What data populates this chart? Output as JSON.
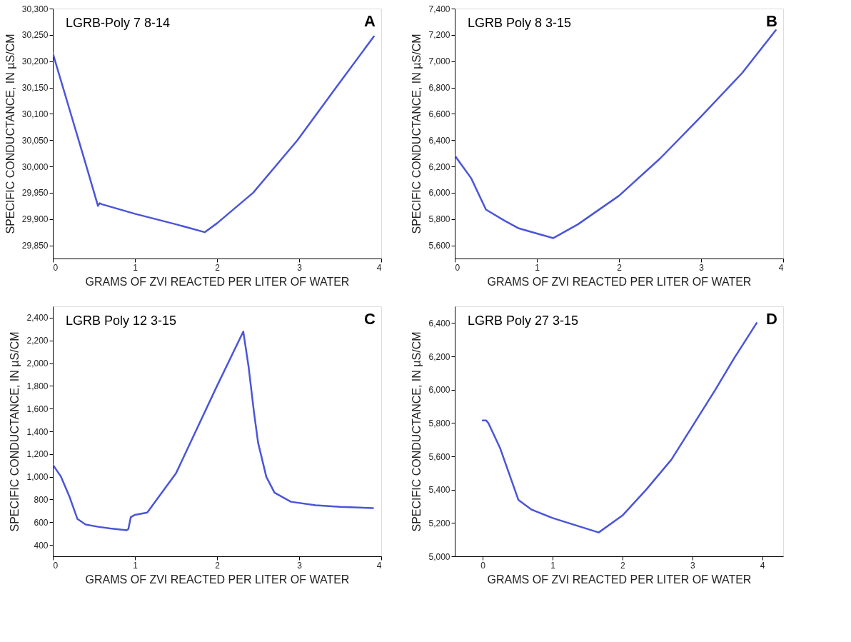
{
  "chart_data": [
    {
      "type": "line",
      "title": "LGRB-Poly 7 8-14",
      "annotations": [
        "A"
      ],
      "xlabel": "GRAMS OF ZVI REACTED PER LITER OF WATER",
      "ylabel": "SPECIFIC CONDUCTANCE, IN µS/CM",
      "xlim": [
        0,
        4
      ],
      "xticks": [
        0,
        1,
        2,
        3,
        4
      ],
      "ylim": [
        29825,
        30300
      ],
      "yticks": [
        {
          "value": 29850,
          "label": "29,850"
        },
        {
          "value": 29900,
          "label": "29,900"
        },
        {
          "value": 29950,
          "label": "29,950"
        },
        {
          "value": 30000,
          "label": "30,000"
        },
        {
          "value": 30050,
          "label": "30,050"
        },
        {
          "value": 30100,
          "label": "30,100"
        },
        {
          "value": 30150,
          "label": "30,150"
        },
        {
          "value": 30200,
          "label": "30,200"
        },
        {
          "value": 30250,
          "label": "30,250"
        },
        {
          "value": 30300,
          "label": "30,300"
        }
      ],
      "grid": false,
      "marker": "none",
      "line_style": "solid",
      "series": [
        {
          "color": "#4a55d8",
          "x": [
            0,
            0.2,
            0.4,
            0.55,
            0.57,
            0.6,
            1.0,
            1.5,
            1.85,
            2.0,
            2.44,
            2.98,
            3.45,
            3.91
          ],
          "values": [
            30215,
            30110,
            30005,
            29925,
            29930,
            29928,
            29910,
            29890,
            29875,
            29892,
            29950,
            30050,
            30150,
            30247
          ]
        }
      ]
    },
    {
      "type": "line",
      "title": "LGRB Poly 8 3-15",
      "annotations": [
        "B"
      ],
      "xlabel": "GRAMS OF ZVI REACTED PER LITER OF WATER",
      "ylabel": "SPECIFIC CONDUCTANCE, IN µS/CM",
      "xlim": [
        0,
        4
      ],
      "xticks": [
        0,
        1,
        2,
        3,
        4
      ],
      "ylim": [
        5500,
        7400
      ],
      "yticks": [
        {
          "value": 5600,
          "label": "5,600"
        },
        {
          "value": 5800,
          "label": "5,800"
        },
        {
          "value": 6000,
          "label": "6,000"
        },
        {
          "value": 6200,
          "label": "6,200"
        },
        {
          "value": 6400,
          "label": "6,400"
        },
        {
          "value": 6600,
          "label": "6,600"
        },
        {
          "value": 6800,
          "label": "6,800"
        },
        {
          "value": 7000,
          "label": "7,000"
        },
        {
          "value": 7200,
          "label": "7,200"
        },
        {
          "value": 7400,
          "label": "7,400"
        }
      ],
      "grid": false,
      "marker": "none",
      "line_style": "solid",
      "series": [
        {
          "color": "#4a55d8",
          "x": [
            0,
            0.2,
            0.38,
            0.6,
            0.78,
            1.0,
            1.2,
            1.5,
            2.0,
            2.5,
            3.0,
            3.5,
            3.91
          ],
          "values": [
            6283,
            6110,
            5872,
            5790,
            5729,
            5690,
            5655,
            5760,
            5977,
            6260,
            6580,
            6910,
            7236
          ]
        }
      ]
    },
    {
      "type": "line",
      "title": "LGRB Poly 12 3-15",
      "annotations": [
        "C"
      ],
      "xlabel": "GRAMS OF ZVI REACTED PER LITER OF WATER",
      "ylabel": "SPECIFIC CONDUCTANCE, IN µS/CM",
      "xlim": [
        0,
        4
      ],
      "xticks": [
        0,
        1,
        2,
        3,
        4
      ],
      "ylim": [
        300,
        2500
      ],
      "yticks": [
        {
          "value": 400,
          "label": "400"
        },
        {
          "value": 600,
          "label": "600"
        },
        {
          "value": 800,
          "label": "800"
        },
        {
          "value": 1000,
          "label": "1,000"
        },
        {
          "value": 1200,
          "label": "1,200"
        },
        {
          "value": 1400,
          "label": "1,400"
        },
        {
          "value": 1600,
          "label": "1,600"
        },
        {
          "value": 1800,
          "label": "1,800"
        },
        {
          "value": 2000,
          "label": "2,000"
        },
        {
          "value": 2200,
          "label": "2,200"
        },
        {
          "value": 2400,
          "label": "2,400"
        }
      ],
      "grid": false,
      "marker": "none",
      "line_style": "solid",
      "series": [
        {
          "color": "#4a55d8",
          "x": [
            0,
            0.1,
            0.2,
            0.3,
            0.4,
            0.55,
            0.7,
            0.9,
            0.92,
            0.95,
            1.0,
            1.15,
            1.5,
            2.0,
            2.32,
            2.385,
            2.45,
            2.5,
            2.6,
            2.7,
            2.9,
            3.2,
            3.5,
            3.9
          ],
          "values": [
            1107,
            1000,
            830,
            628,
            580,
            560,
            545,
            530,
            540,
            645,
            665,
            685,
            1030,
            1800,
            2278,
            1965,
            1567,
            1300,
            1000,
            860,
            780,
            750,
            735,
            725
          ]
        }
      ]
    },
    {
      "type": "line",
      "title": "LGRB Poly 27 3-15",
      "annotations": [
        "D"
      ],
      "xlabel": "GRAMS OF ZVI REACTED PER LITER OF WATER",
      "ylabel": "SPECIFIC CONDUCTANCE, IN µS/CM",
      "xlim": [
        -0.4,
        4.3
      ],
      "xticks": [
        0,
        1,
        2,
        3,
        4
      ],
      "ylim": [
        5000,
        6500
      ],
      "yticks": [
        {
          "value": 5000,
          "label": "5,000"
        },
        {
          "value": 5200,
          "label": "5,200"
        },
        {
          "value": 5400,
          "label": "5,400"
        },
        {
          "value": 5600,
          "label": "5,600"
        },
        {
          "value": 5800,
          "label": "5,800"
        },
        {
          "value": 6000,
          "label": "6,000"
        },
        {
          "value": 6200,
          "label": "6,200"
        },
        {
          "value": 6400,
          "label": "6,400"
        }
      ],
      "grid": false,
      "marker": "none",
      "line_style": "solid",
      "series": [
        {
          "color": "#4a55d8",
          "x": [
            0,
            0.05,
            0.08,
            0.25,
            0.4,
            0.51,
            0.7,
            1.0,
            1.3,
            1.66,
            2.0,
            2.34,
            2.7,
            3.03,
            3.33,
            3.6,
            3.92
          ],
          "values": [
            5815,
            5815,
            5800,
            5648,
            5470,
            5339,
            5280,
            5230,
            5190,
            5143,
            5245,
            5400,
            5580,
            5800,
            6000,
            6190,
            6400
          ]
        }
      ]
    }
  ]
}
